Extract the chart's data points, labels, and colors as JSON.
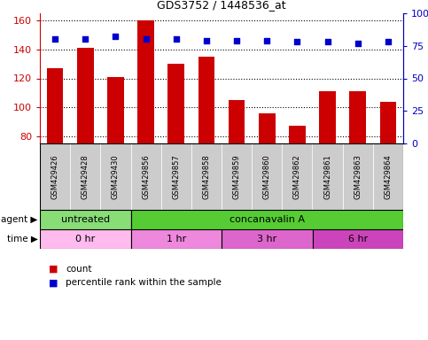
{
  "title": "GDS3752 / 1448536_at",
  "samples": [
    "GSM429426",
    "GSM429428",
    "GSM429430",
    "GSM429856",
    "GSM429857",
    "GSM429858",
    "GSM429859",
    "GSM429860",
    "GSM429862",
    "GSM429861",
    "GSM429863",
    "GSM429864"
  ],
  "counts": [
    127,
    141,
    121,
    160,
    130,
    135,
    105,
    96,
    87,
    111,
    111,
    104
  ],
  "percentile_ranks": [
    80,
    80,
    82,
    80,
    80,
    79,
    79,
    79,
    78,
    78,
    77,
    78
  ],
  "ylim_left": [
    75,
    165
  ],
  "yticks_left": [
    80,
    100,
    120,
    140,
    160
  ],
  "ylim_right": [
    0,
    100
  ],
  "yticks_right": [
    0,
    25,
    50,
    75,
    100
  ],
  "bar_color": "#cc0000",
  "dot_color": "#0000cc",
  "bar_width": 0.55,
  "agent_labels": [
    {
      "text": "untreated",
      "start": 0,
      "end": 3,
      "color": "#88dd77"
    },
    {
      "text": "concanavalin A",
      "start": 3,
      "end": 12,
      "color": "#55cc33"
    }
  ],
  "time_labels": [
    {
      "text": "0 hr",
      "start": 0,
      "end": 3,
      "color": "#ffbbee"
    },
    {
      "text": "1 hr",
      "start": 3,
      "end": 6,
      "color": "#ee88dd"
    },
    {
      "text": "3 hr",
      "start": 6,
      "end": 9,
      "color": "#dd66cc"
    },
    {
      "text": "6 hr",
      "start": 9,
      "end": 12,
      "color": "#cc44bb"
    }
  ],
  "bg_color": "#ffffff",
  "tick_label_color_left": "#cc0000",
  "tick_label_color_right": "#0000cc",
  "sample_bg_color": "#cccccc",
  "border_color": "#000000"
}
